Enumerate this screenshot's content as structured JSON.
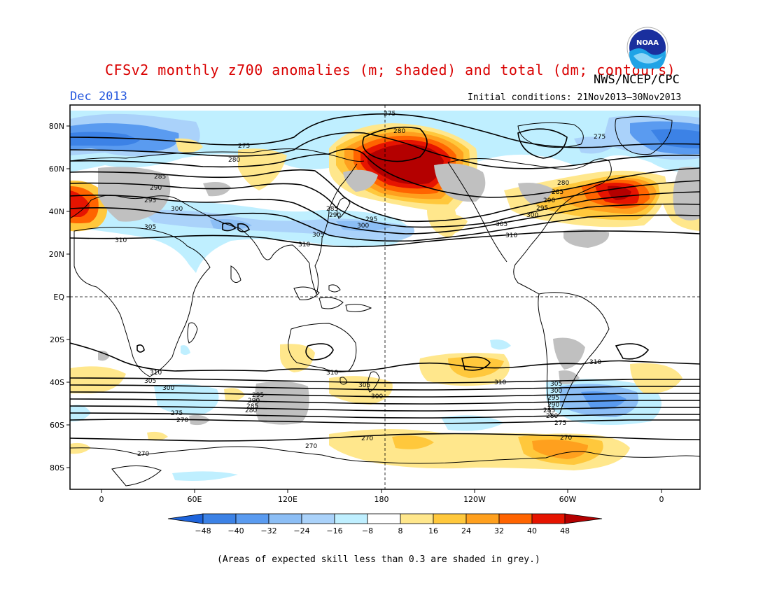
{
  "header": {
    "title": "CFSv2 monthly z700 anomalies (m; shaded) and total (dm; contours)",
    "agency": "NWS/NCEP/CPC",
    "month": "Dec 2013",
    "initial_conditions": "Initial conditions: 21Nov2013–30Nov2013",
    "logo_text": "NOAA"
  },
  "map": {
    "lat_labels": [
      "80N",
      "60N",
      "40N",
      "20N",
      "EQ",
      "20S",
      "40S",
      "60S",
      "80S"
    ],
    "lon_labels": [
      "0",
      "60E",
      "120E",
      "180",
      "120W",
      "60W",
      "0"
    ],
    "contour_labels_nh": [
      "275",
      "280",
      "285",
      "290",
      "295",
      "300",
      "305",
      "310"
    ],
    "contour_labels_sh": [
      "310",
      "305",
      "300",
      "295",
      "290",
      "285",
      "280",
      "275",
      "270"
    ],
    "anomaly_colors": {
      "neg48": "#1e64dc",
      "neg40": "#3c82e6",
      "neg32": "#5a9bf0",
      "neg24": "#8cbef5",
      "neg16": "#aad2fa",
      "neg8": "#bfefff",
      "zero": "#ffffff",
      "pos8": "#ffe78c",
      "pos16": "#ffc83c",
      "pos24": "#ffa01e",
      "pos32": "#ff6400",
      "pos40": "#e61400",
      "pos48": "#b40000",
      "skill_grey": "#c0c0c0"
    }
  },
  "colorbar": {
    "labels": [
      "−48",
      "−40",
      "−32",
      "−24",
      "−16",
      "−8",
      "8",
      "16",
      "24",
      "32",
      "40",
      "48"
    ]
  },
  "footnote": "(Areas of expected skill less than 0.3 are shaded in grey.)"
}
